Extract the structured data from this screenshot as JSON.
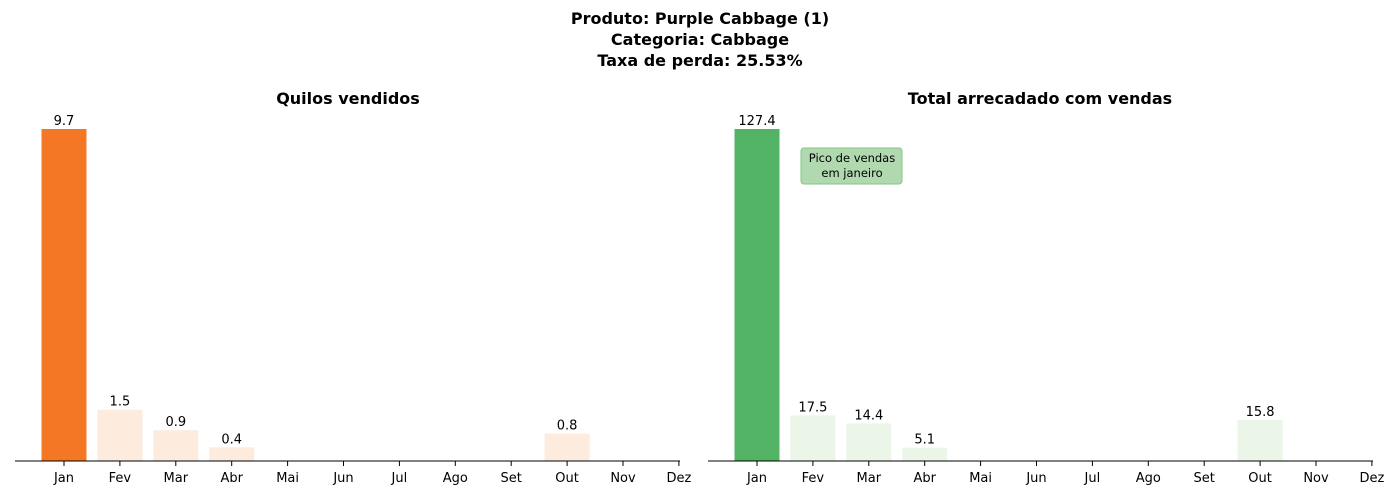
{
  "figure": {
    "title_lines": [
      "Produto: Purple Cabbage (1)",
      "Categoria: Cabbage",
      "Taxa de perda: 25.53%"
    ]
  },
  "chart_data": [
    {
      "type": "bar",
      "title": "Quilos vendidos",
      "categories": [
        "Jan",
        "Fev",
        "Mar",
        "Abr",
        "Mai",
        "Jun",
        "Jul",
        "Ago",
        "Set",
        "Out",
        "Nov",
        "Dez"
      ],
      "values": [
        9.7,
        1.5,
        0.9,
        0.4,
        null,
        null,
        null,
        null,
        null,
        0.8,
        null,
        null
      ],
      "data_labels": [
        "9.7",
        "1.5",
        "0.9",
        "0.4",
        null,
        null,
        null,
        null,
        null,
        "0.8",
        null,
        null
      ],
      "highlight_color": "#f47726",
      "base_color": "#fdebdd",
      "ylim": [
        0,
        9.7
      ],
      "xlabel": "",
      "ylabel": "",
      "grid": false
    },
    {
      "type": "bar",
      "title": "Total arrecadado com vendas",
      "categories": [
        "Jan",
        "Fev",
        "Mar",
        "Abr",
        "Mai",
        "Jun",
        "Jul",
        "Ago",
        "Set",
        "Out",
        "Nov",
        "Dez"
      ],
      "values": [
        127.4,
        17.5,
        14.4,
        5.1,
        null,
        null,
        null,
        null,
        null,
        15.8,
        null,
        null
      ],
      "data_labels": [
        "127.4",
        "17.5",
        "14.4",
        "5.1",
        null,
        null,
        null,
        null,
        null,
        "15.8",
        null,
        null
      ],
      "highlight_color": "#52b365",
      "base_color": "#ebf6e9",
      "ylim": [
        0,
        127.4
      ],
      "xlabel": "",
      "ylabel": "",
      "grid": false,
      "annotation": {
        "text_lines": [
          "Pico de vendas",
          "em janeiro"
        ],
        "box_color": "#b1d9af",
        "box_edge": "#86c489"
      }
    }
  ]
}
